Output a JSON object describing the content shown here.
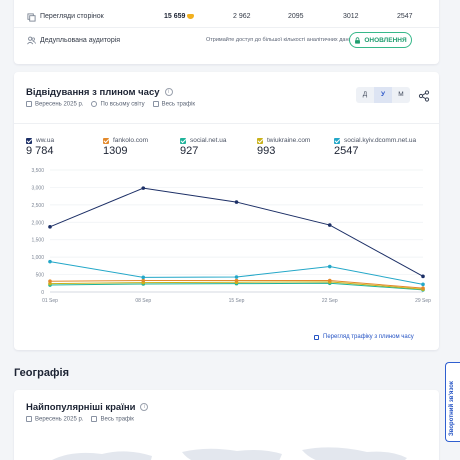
{
  "top_card": {
    "pageviews": {
      "label": "Перегляди сторінок",
      "values": [
        "15 659",
        "2 962",
        "2095",
        "3012",
        "2547"
      ]
    },
    "audience": {
      "label": "Дедупльована аудиторія",
      "promo": "Отримайте доступ до більшої кількості аналітичних даних",
      "button": "ОНОВЛЕННЯ"
    }
  },
  "chart_card": {
    "title": "Відвідування з плином часу",
    "info": "i",
    "meta": {
      "period": "Вересень 2025 р.",
      "region": "По всьому світу",
      "traffic": "Весь трафік"
    },
    "granularity": [
      "Д",
      "У",
      "М"
    ],
    "active_granularity": "У",
    "footer_link": "Перегляд трафіку з плином часу",
    "legend": [
      {
        "name": "ww.ua",
        "value": "9 784",
        "color": "#1c2f66"
      },
      {
        "name": "fankolo.com",
        "value": "1309",
        "color": "#e3892b"
      },
      {
        "name": "social.net.ua",
        "value": "927",
        "color": "#1fb39a"
      },
      {
        "name": "twiukraine.com",
        "value": "993",
        "color": "#c9b21a"
      },
      {
        "name": "social.kyiv.dcomm.net.ua",
        "value": "2547",
        "color": "#23a7c8"
      }
    ]
  },
  "chart_data": {
    "type": "line",
    "x": [
      "01 Sep",
      "08 Sep",
      "15 Sep",
      "22 Sep",
      "29 Sep"
    ],
    "ylim": [
      0,
      3500
    ],
    "yticks": [
      "0",
      "500",
      "1,000",
      "1,500",
      "2,000",
      "2,500",
      "3,000",
      "3,500"
    ],
    "series": [
      {
        "name": "ww.ua",
        "color": "#1c2f66",
        "values": [
          1870,
          2980,
          2580,
          1920,
          450
        ]
      },
      {
        "name": "social.kyiv.dcomm.net.ua",
        "color": "#23a7c8",
        "values": [
          870,
          420,
          430,
          730,
          220
        ]
      },
      {
        "name": "fankolo.com",
        "color": "#e3892b",
        "values": [
          310,
          330,
          330,
          330,
          110
        ]
      },
      {
        "name": "twiukraine.com",
        "color": "#c9b21a",
        "values": [
          240,
          270,
          280,
          290,
          80
        ]
      },
      {
        "name": "social.net.ua",
        "color": "#1fb39a",
        "values": [
          200,
          230,
          240,
          250,
          60
        ]
      }
    ]
  },
  "geography": {
    "heading": "Географія",
    "card_title": "Найпопулярніші країни",
    "info": "i",
    "meta": {
      "period": "Вересень 2025 р.",
      "traffic": "Весь трафік"
    }
  },
  "feedback": "Зворотний зв'язок",
  "colors": {
    "accent": "#2453c4",
    "update_green": "#37b88a"
  }
}
